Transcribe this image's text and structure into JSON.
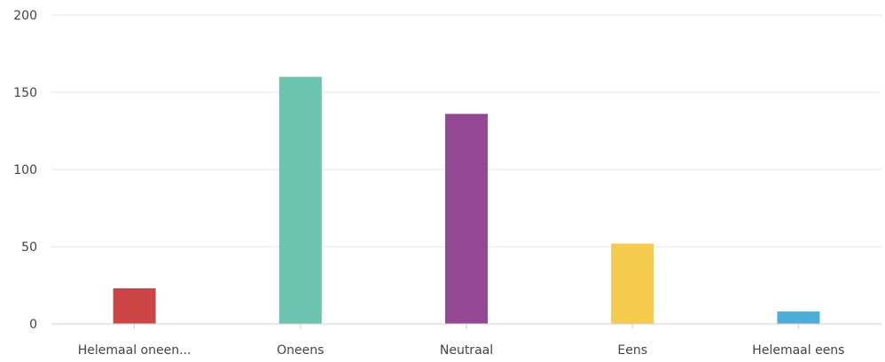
{
  "chart_data": {
    "type": "bar",
    "title": "",
    "xlabel": "",
    "ylabel": "",
    "categories": [
      "Helemaal oneen...",
      "Oneens",
      "Neutraal",
      "Eens",
      "Helemaal eens"
    ],
    "values": [
      23,
      160,
      136,
      52,
      8
    ],
    "colors": [
      "#cc4444",
      "#6cc3ae",
      "#944792",
      "#f4cb4c",
      "#4aaed8"
    ],
    "ylim": [
      0,
      200
    ],
    "yticks": [
      0,
      50,
      100,
      150,
      200
    ],
    "grid": true,
    "legend": "none"
  }
}
